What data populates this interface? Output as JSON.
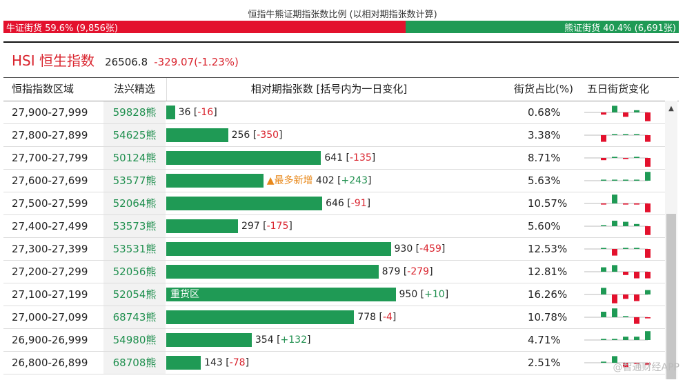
{
  "header": {
    "title": "恒指牛熊证期指张数比例 (以相对期指张数计算)",
    "bull": {
      "text": "牛证街货 59.6% (9,856张)",
      "share": 0.596
    },
    "bear": {
      "text": "熊证街货 40.4% (6,691张)"
    }
  },
  "index": {
    "name": "HSI 恒生指数",
    "value": "26506.8",
    "change": "-329.07(-1.23%)"
  },
  "table": {
    "columns": [
      "恒指指数区域",
      "法兴精选",
      "相对期指张数 [括号内为一日变化]",
      "街货占比(%)",
      "五日街货变化"
    ],
    "markers": {
      "most_new": "▲最多新增",
      "heavy": "重货区"
    },
    "rows": [
      {
        "range": "27,900-27,999",
        "warrant": "59828熊",
        "contracts": 36,
        "count": "36",
        "change": "-16",
        "pct": "0.68%",
        "spark": [
          -1,
          3,
          -2,
          1,
          -4
        ]
      },
      {
        "range": "27,800-27,899",
        "warrant": "54625熊",
        "contracts": 256,
        "count": "256",
        "change": "-350",
        "pct": "3.38%",
        "spark": [
          -3,
          0,
          0.3,
          0.3,
          -3
        ]
      },
      {
        "range": "27,700-27,799",
        "warrant": "50124熊",
        "contracts": 641,
        "count": "641",
        "change": "-135",
        "pct": "8.71%",
        "spark": [
          -1,
          0.5,
          -0.5,
          0.5,
          -4
        ]
      },
      {
        "range": "27,600-27,699",
        "warrant": "53577熊",
        "contracts": 402,
        "count": "402",
        "change": "+243",
        "pct": "5.63%",
        "spark": [
          0.2,
          0.2,
          0.2,
          0.2,
          4
        ],
        "marker": "most_new"
      },
      {
        "range": "27,500-27,599",
        "warrant": "52064熊",
        "contracts": 646,
        "count": "646",
        "change": "-91",
        "pct": "10.57%",
        "spark": [
          -0.5,
          4,
          -0.5,
          -0.5,
          -4
        ]
      },
      {
        "range": "27,400-27,499",
        "warrant": "53573熊",
        "contracts": 297,
        "count": "297",
        "change": "-175",
        "pct": "5.60%",
        "spark": [
          0.2,
          2.5,
          2,
          1,
          -4
        ]
      },
      {
        "range": "27,300-27,399",
        "warrant": "53531熊",
        "contracts": 930,
        "count": "930",
        "change": "-459",
        "pct": "12.53%",
        "spark": [
          0.3,
          -3,
          0.5,
          0.5,
          -4
        ]
      },
      {
        "range": "27,200-27,299",
        "warrant": "52056熊",
        "contracts": 879,
        "count": "879",
        "change": "-279",
        "pct": "12.81%",
        "spark": [
          2,
          3,
          -1.5,
          -3,
          -3
        ]
      },
      {
        "range": "27,100-27,199",
        "warrant": "52054熊",
        "contracts": 950,
        "count": "950",
        "change": "+10",
        "pct": "16.26%",
        "spark": [
          3,
          -4,
          -2,
          -3,
          2
        ],
        "marker": "heavy"
      },
      {
        "range": "27,000-27,099",
        "warrant": "68743熊",
        "contracts": 778,
        "count": "778",
        "change": "-4",
        "pct": "10.78%",
        "spark": [
          2.5,
          4,
          0.5,
          -3,
          -0.5
        ]
      },
      {
        "range": "26,900-26,999",
        "warrant": "54980熊",
        "contracts": 354,
        "count": "354",
        "change": "+132",
        "pct": "4.71%",
        "spark": [
          0.5,
          0.5,
          1.5,
          1.5,
          4
        ]
      },
      {
        "range": "26,800-26,899",
        "warrant": "68708熊",
        "contracts": 143,
        "count": "143",
        "change": "-78",
        "pct": "2.51%",
        "spark": [
          0.5,
          3,
          -2,
          -0.5,
          -1
        ]
      }
    ]
  },
  "watermark": "@智通财经APP",
  "colors": {
    "bull": "#e3112d",
    "bear": "#1f9a55",
    "down": "#d9232d",
    "up": "#1f8f4e"
  }
}
